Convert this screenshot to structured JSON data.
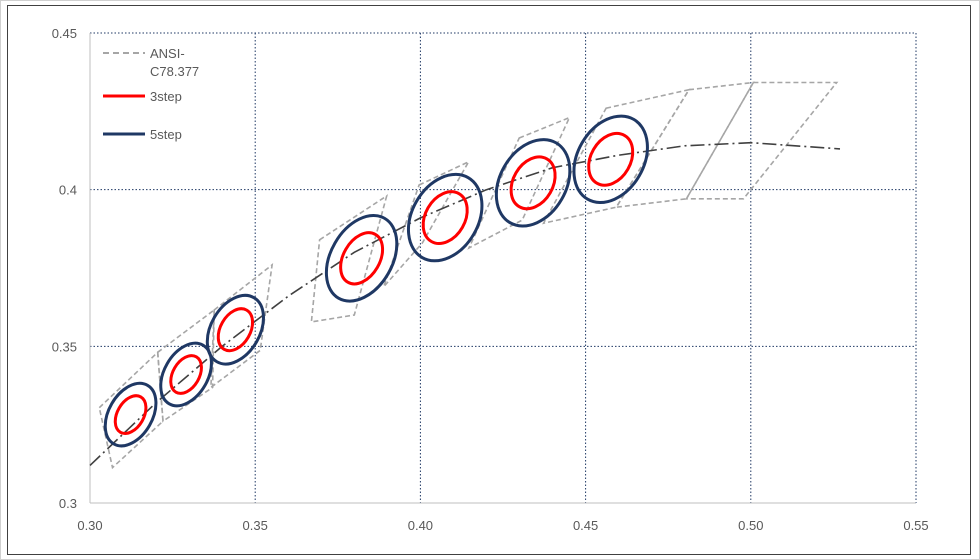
{
  "chart_data": {
    "type": "line",
    "title": "",
    "xlabel": "",
    "ylabel": "",
    "xlim": [
      0.3,
      0.55
    ],
    "ylim": [
      0.3,
      0.45
    ],
    "x_ticks": [
      0.3,
      0.35,
      0.4,
      0.45,
      0.5,
      0.55
    ],
    "x_tick_labels": [
      "0.30",
      "0.35",
      "0.40",
      "0.45",
      "0.50",
      "0.55"
    ],
    "y_ticks": [
      0.3,
      0.35,
      0.4,
      0.45
    ],
    "y_tick_labels": [
      "0.3",
      "0.35",
      "0.4",
      "0.45"
    ],
    "grid": true,
    "legend_position": "top-left",
    "legend": [
      {
        "label_line1": "ANSI-",
        "label_line2": "C78.377",
        "style": "dashed",
        "color": "#a6a6a6"
      },
      {
        "label_line1": "3step",
        "label_line2": "",
        "style": "solid",
        "color": "#ff0000"
      },
      {
        "label_line1": "5step",
        "label_line2": "",
        "style": "solid",
        "color": "#1f3864"
      }
    ],
    "planckian_locus": {
      "color": "#404040",
      "points": [
        [
          0.3,
          0.312
        ],
        [
          0.32,
          0.332
        ],
        [
          0.34,
          0.35
        ],
        [
          0.36,
          0.366
        ],
        [
          0.38,
          0.38
        ],
        [
          0.4,
          0.391
        ],
        [
          0.42,
          0.4
        ],
        [
          0.44,
          0.407
        ],
        [
          0.46,
          0.411
        ],
        [
          0.48,
          0.414
        ],
        [
          0.5,
          0.415
        ],
        [
          0.527,
          0.413
        ]
      ]
    },
    "ansi_quadrangles": [
      [
        [
          0.3028,
          0.3304
        ],
        [
          0.3205,
          0.3481
        ],
        [
          0.3221,
          0.3261
        ],
        [
          0.3068,
          0.3113
        ]
      ],
      [
        [
          0.3205,
          0.3481
        ],
        [
          0.3376,
          0.3616
        ],
        [
          0.3371,
          0.3369
        ],
        [
          0.3221,
          0.3261
        ]
      ],
      [
        [
          0.3376,
          0.3616
        ],
        [
          0.3551,
          0.376
        ],
        [
          0.3515,
          0.3487
        ],
        [
          0.3366,
          0.3369
        ]
      ],
      [
        [
          0.3695,
          0.384
        ],
        [
          0.3898,
          0.398
        ],
        [
          0.38,
          0.36
        ],
        [
          0.367,
          0.3578
        ]
      ],
      [
        [
          0.3996,
          0.4015
        ],
        [
          0.4146,
          0.4089
        ],
        [
          0.4006,
          0.383
        ],
        [
          0.3889,
          0.369
        ]
      ],
      [
        [
          0.4299,
          0.4165
        ],
        [
          0.4451,
          0.423
        ],
        [
          0.4308,
          0.3903
        ],
        [
          0.4147,
          0.3814
        ]
      ],
      [
        [
          0.4562,
          0.426
        ],
        [
          0.4813,
          0.4319
        ],
        [
          0.4593,
          0.3944
        ],
        [
          0.4373,
          0.3893
        ]
      ],
      [
        [
          0.4813,
          0.4319
        ],
        [
          0.5008,
          0.4342
        ],
        [
          0.4805,
          0.3971
        ],
        [
          0.4593,
          0.3944
        ]
      ],
      [
        [
          0.5008,
          0.4342
        ],
        [
          0.526,
          0.4342
        ],
        [
          0.4978,
          0.3971
        ],
        [
          0.4805,
          0.3971
        ]
      ]
    ],
    "ellipses_3step": [
      {
        "cx": 0.3123,
        "cy": 0.3282,
        "rx": 0.004,
        "ry": 0.0065,
        "angle": 30
      },
      {
        "cx": 0.3291,
        "cy": 0.341,
        "rx": 0.004,
        "ry": 0.0065,
        "angle": 30
      },
      {
        "cx": 0.344,
        "cy": 0.3553,
        "rx": 0.0045,
        "ry": 0.0072,
        "angle": 30
      },
      {
        "cx": 0.3822,
        "cy": 0.3781,
        "rx": 0.0055,
        "ry": 0.0088,
        "angle": 30
      },
      {
        "cx": 0.4075,
        "cy": 0.3911,
        "rx": 0.006,
        "ry": 0.0088,
        "angle": 30
      },
      {
        "cx": 0.4341,
        "cy": 0.4022,
        "rx": 0.006,
        "ry": 0.0088,
        "angle": 30
      },
      {
        "cx": 0.4576,
        "cy": 0.4097,
        "rx": 0.006,
        "ry": 0.0088,
        "angle": 30
      }
    ],
    "ellipses_5step": [
      {
        "cx": 0.3123,
        "cy": 0.3282,
        "rx": 0.0066,
        "ry": 0.0108,
        "angle": 30
      },
      {
        "cx": 0.3291,
        "cy": 0.341,
        "rx": 0.0066,
        "ry": 0.0108,
        "angle": 30
      },
      {
        "cx": 0.344,
        "cy": 0.3553,
        "rx": 0.0074,
        "ry": 0.0118,
        "angle": 30
      },
      {
        "cx": 0.3822,
        "cy": 0.3781,
        "rx": 0.0093,
        "ry": 0.0147,
        "angle": 30
      },
      {
        "cx": 0.4075,
        "cy": 0.3911,
        "rx": 0.01,
        "ry": 0.0147,
        "angle": 30
      },
      {
        "cx": 0.4341,
        "cy": 0.4022,
        "rx": 0.01,
        "ry": 0.0147,
        "angle": 30
      },
      {
        "cx": 0.4576,
        "cy": 0.4097,
        "rx": 0.01,
        "ry": 0.0147,
        "angle": 30
      }
    ]
  }
}
